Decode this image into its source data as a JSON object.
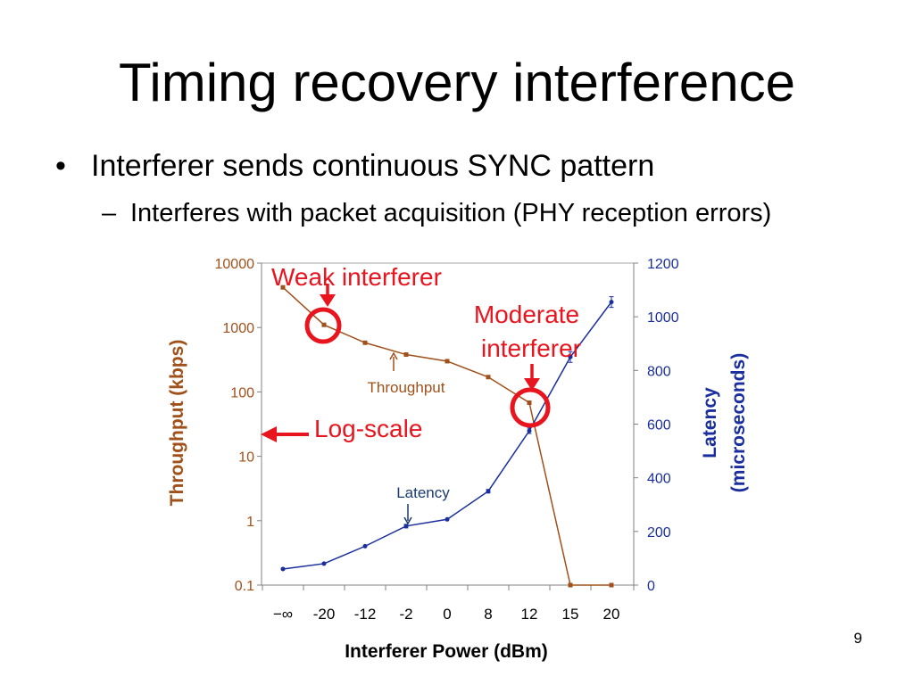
{
  "slide": {
    "title": "Timing recovery interference",
    "bullet": "Interferer sends continuous SYNC pattern",
    "bullet_marker": "•",
    "sub_bullet": "Interferes with packet acquisition (PHY reception errors)",
    "sub_bullet_marker": "–",
    "page_number": "9"
  },
  "colors": {
    "throughput": "#a0501a",
    "latency": "#1a2e9e",
    "highlight": "#e8141e",
    "axis": "#808080"
  },
  "chart_data": {
    "type": "line",
    "xlabel": "Interferer Power (dBm)",
    "ylabel_left": "Throughput (kbps)",
    "ylabel_right_lines": [
      "Latency",
      "(microseconds)"
    ],
    "x_categories": [
      "−∞",
      "-20",
      "-12",
      "-2",
      "0",
      "8",
      "12",
      "15",
      "20"
    ],
    "left_axis": {
      "scale": "log",
      "min": 0.1,
      "max": 10000,
      "ticks": [
        "0.1",
        "1",
        "10",
        "100",
        "1000",
        "10000"
      ]
    },
    "right_axis": {
      "scale": "linear",
      "min": 0,
      "max": 1200,
      "ticks": [
        "0",
        "200",
        "400",
        "600",
        "800",
        "1000",
        "1200"
      ]
    },
    "series": [
      {
        "name": "Throughput",
        "axis": "left",
        "points": [
          {
            "x": -24,
            "y": 4200
          },
          {
            "x": -20,
            "y": 1100
          },
          {
            "x": -16,
            "y": 580
          },
          {
            "x": -12,
            "y": 380
          },
          {
            "x": -8,
            "y": 300
          },
          {
            "x": -4,
            "y": 170
          },
          {
            "x": 0,
            "y": 68
          },
          {
            "x": 4,
            "y": 0.1
          },
          {
            "x": 8,
            "y": 0.1
          }
        ]
      },
      {
        "name": "Latency",
        "axis": "right",
        "points": [
          {
            "x": -24,
            "y": 60
          },
          {
            "x": -20,
            "y": 80
          },
          {
            "x": -16,
            "y": 145
          },
          {
            "x": -12,
            "y": 220
          },
          {
            "x": -8,
            "y": 245
          },
          {
            "x": -4,
            "y": 350
          },
          {
            "x": 0,
            "y": 575
          },
          {
            "x": 4,
            "y": 850
          },
          {
            "x": 8,
            "y": 1055
          }
        ]
      }
    ],
    "annotations": {
      "weak": "Weak interferer",
      "moderate_1": "Moderate",
      "moderate_2": "interferer",
      "log_scale": "Log-scale",
      "throughput_label": "Throughput",
      "latency_label": "Latency"
    }
  }
}
